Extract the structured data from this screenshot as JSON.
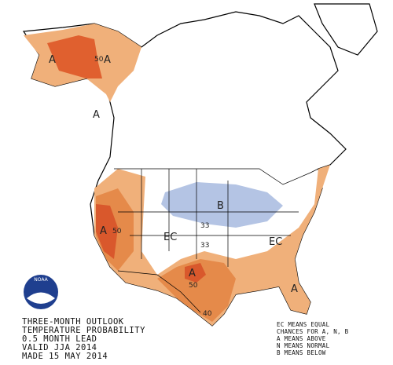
{
  "logo": "NOAA",
  "map_labels": [
    "A",
    "50",
    "A",
    "A",
    "A",
    "50",
    "B",
    "33",
    "EC",
    "33",
    "EC",
    "A",
    "50",
    "A",
    "40"
  ],
  "title_block": [
    "THREE-MONTH OUTLOOK",
    "TEMPERATURE PROBABILITY",
    "0.5 MONTH LEAD",
    "VALID JJA 2014",
    "MADE 15 MAY 2014"
  ],
  "legend": [
    "EC MEANS EQUAL",
    "CHANCES FOR A, N, B",
    "A MEANS ABOVE",
    "N MEANS NORMAL",
    "B MEANS BELOW"
  ]
}
